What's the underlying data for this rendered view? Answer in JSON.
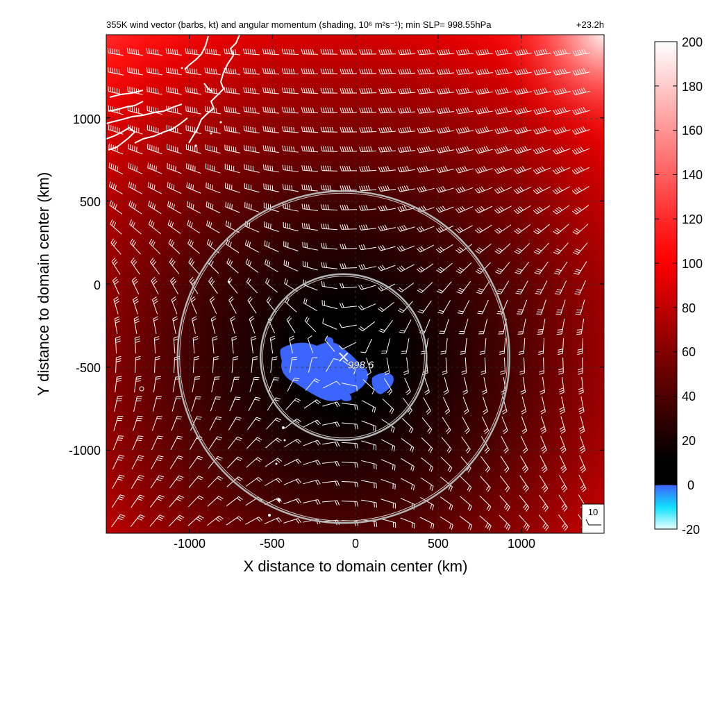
{
  "chart_data": {
    "type": "heatmap",
    "title": "355K wind vector (barbs, kt) and angular momentum (shading, 10⁶ m²s⁻¹); min SLP= 998.55hPa",
    "time_label": "+23.2h",
    "xlabel": "X distance to domain center (km)",
    "ylabel": "Y distance to domain center (km)",
    "xlim": [
      -1500,
      1500
    ],
    "ylim": [
      -1500,
      1500
    ],
    "x_ticks": [
      -1000,
      -500,
      0,
      500,
      1000
    ],
    "y_ticks": [
      1000,
      500,
      0,
      -500,
      -1000
    ],
    "grid": true,
    "colorbar": {
      "min": -20,
      "max": 200,
      "ticks": [
        200,
        180,
        160,
        140,
        120,
        100,
        80,
        60,
        40,
        20,
        0,
        -20
      ]
    },
    "center": {
      "x": -70,
      "y": -440,
      "label": "998.6"
    },
    "rings_km": [
      500,
      1000
    ],
    "barb_key": {
      "label": "10"
    },
    "colors": {
      "negative": "#3c64ff",
      "zero": "#000000",
      "mid": "#ff0000",
      "high": "#ffffff",
      "ring": "#b4b4b4",
      "coast": "#ffffff",
      "barb": "#ffffff"
    }
  }
}
